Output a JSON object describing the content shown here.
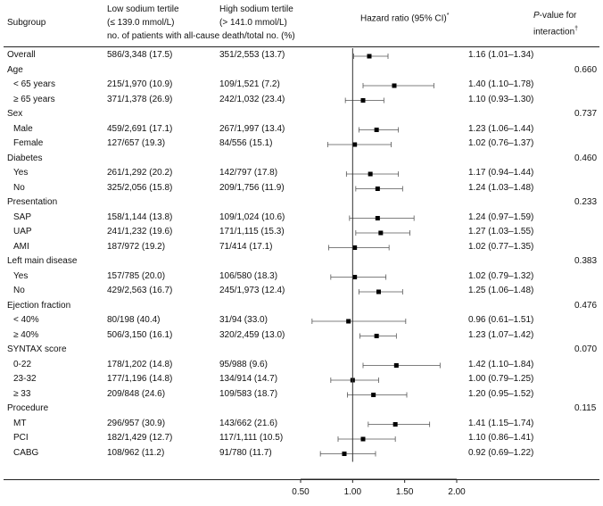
{
  "header": {
    "subgroup": "Subgroup",
    "low_line1": "Low sodium tertile",
    "low_line2": "(≤ 139.0 mmol/L)",
    "high_line1": "High sodium tertile",
    "high_line2": "(> 141.0 mmol/L)",
    "counts_caption": "no. of patients with all-cause death/total no. (%)",
    "hr_title": "Hazard ratio (95% CI)",
    "hr_title_mark": "*",
    "p_line1_italic": "P",
    "p_line1_rest": "-value for",
    "p_line2": "interaction",
    "p_line2_mark": "†"
  },
  "chart_data": {
    "type": "forest",
    "xlim": [
      0.5,
      2.0
    ],
    "xticks": [
      "0.50",
      "1.00",
      "1.50",
      "2.00"
    ],
    "reference_line": 1.0,
    "rows": [
      {
        "label": "Overall",
        "kind": "overall",
        "low": "586/3,348 (17.5)",
        "high": "351/2,553 (13.7)",
        "hr": 1.16,
        "lo": 1.01,
        "hi": 1.34,
        "hr_text": "1.16 (1.01–1.34)",
        "p": ""
      },
      {
        "label": "Age",
        "kind": "group",
        "p": "0.660"
      },
      {
        "label": "< 65 years",
        "kind": "sub",
        "low": "215/1,970 (10.9)",
        "high": "109/1,521 (7.2)",
        "hr": 1.4,
        "lo": 1.1,
        "hi": 1.78,
        "hr_text": "1.40 (1.10–1.78)"
      },
      {
        "label": "≥ 65 years",
        "kind": "sub",
        "low": "371/1,378 (26.9)",
        "high": "242/1,032 (23.4)",
        "hr": 1.1,
        "lo": 0.93,
        "hi": 1.3,
        "hr_text": "1.10 (0.93–1.30)"
      },
      {
        "label": "Sex",
        "kind": "group",
        "p": "0.737"
      },
      {
        "label": "Male",
        "kind": "sub",
        "low": "459/2,691 (17.1)",
        "high": "267/1,997 (13.4)",
        "hr": 1.23,
        "lo": 1.06,
        "hi": 1.44,
        "hr_text": "1.23 (1.06–1.44)"
      },
      {
        "label": "Female",
        "kind": "sub",
        "low": "127/657 (19.3)",
        "high": "84/556 (15.1)",
        "hr": 1.02,
        "lo": 0.76,
        "hi": 1.37,
        "hr_text": "1.02 (0.76–1.37)"
      },
      {
        "label": "Diabetes",
        "kind": "group",
        "p": "0.460"
      },
      {
        "label": "Yes",
        "kind": "sub",
        "low": "261/1,292 (20.2)",
        "high": "142/797 (17.8)",
        "hr": 1.17,
        "lo": 0.94,
        "hi": 1.44,
        "hr_text": "1.17 (0.94–1.44)"
      },
      {
        "label": "No",
        "kind": "sub",
        "low": "325/2,056 (15.8)",
        "high": "209/1,756 (11.9)",
        "hr": 1.24,
        "lo": 1.03,
        "hi": 1.48,
        "hr_text": "1.24 (1.03–1.48)"
      },
      {
        "label": "Presentation",
        "kind": "group",
        "p": "0.233"
      },
      {
        "label": "SAP",
        "kind": "sub",
        "low": "158/1,144 (13.8)",
        "high": "109/1,024 (10.6)",
        "hr": 1.24,
        "lo": 0.97,
        "hi": 1.59,
        "hr_text": "1.24 (0.97–1.59)"
      },
      {
        "label": "UAP",
        "kind": "sub",
        "low": "241/1,232 (19.6)",
        "high": "171/1,115 (15.3)",
        "hr": 1.27,
        "lo": 1.03,
        "hi": 1.55,
        "hr_text": "1.27 (1.03–1.55)"
      },
      {
        "label": "AMI",
        "kind": "sub",
        "low": "187/972 (19.2)",
        "high": "71/414 (17.1)",
        "hr": 1.02,
        "lo": 0.77,
        "hi": 1.35,
        "hr_text": "1.02 (0.77–1.35)"
      },
      {
        "label": "Left main disease",
        "kind": "group",
        "p": "0.383"
      },
      {
        "label": "Yes",
        "kind": "sub",
        "low": "157/785 (20.0)",
        "high": "106/580 (18.3)",
        "hr": 1.02,
        "lo": 0.79,
        "hi": 1.32,
        "hr_text": "1.02 (0.79–1.32)"
      },
      {
        "label": "No",
        "kind": "sub",
        "low": "429/2,563 (16.7)",
        "high": "245/1,973 (12.4)",
        "hr": 1.25,
        "lo": 1.06,
        "hi": 1.48,
        "hr_text": "1.25 (1.06–1.48)"
      },
      {
        "label": "Ejection fraction",
        "kind": "group",
        "p": "0.476"
      },
      {
        "label": "< 40%",
        "kind": "sub",
        "low": "80/198 (40.4)",
        "high": "31/94 (33.0)",
        "hr": 0.96,
        "lo": 0.61,
        "hi": 1.51,
        "hr_text": "0.96 (0.61–1.51)"
      },
      {
        "label": "≥ 40%",
        "kind": "sub",
        "low": "506/3,150 (16.1)",
        "high": "320/2,459 (13.0)",
        "hr": 1.23,
        "lo": 1.07,
        "hi": 1.42,
        "hr_text": "1.23 (1.07–1.42)"
      },
      {
        "label": "SYNTAX score",
        "kind": "group",
        "p": "0.070"
      },
      {
        "label": "0-22",
        "kind": "sub",
        "low": "178/1,202 (14.8)",
        "high": "95/988 (9.6)",
        "hr": 1.42,
        "lo": 1.1,
        "hi": 1.84,
        "hr_text": "1.42 (1.10–1.84)"
      },
      {
        "label": "23-32",
        "kind": "sub",
        "low": "177/1,196 (14.8)",
        "high": "134/914 (14.7)",
        "hr": 1.0,
        "lo": 0.79,
        "hi": 1.25,
        "hr_text": "1.00 (0.79–1.25)"
      },
      {
        "label": "≥ 33",
        "kind": "sub",
        "low": "209/848 (24.6)",
        "high": "109/583 (18.7)",
        "hr": 1.2,
        "lo": 0.95,
        "hi": 1.52,
        "hr_text": "1.20 (0.95–1.52)"
      },
      {
        "label": "Procedure",
        "kind": "group",
        "p": "0.115"
      },
      {
        "label": "MT",
        "kind": "sub",
        "low": "296/957 (30.9)",
        "high": "143/662 (21.6)",
        "hr": 1.41,
        "lo": 1.15,
        "hi": 1.74,
        "hr_text": "1.41 (1.15–1.74)"
      },
      {
        "label": "PCI",
        "kind": "sub",
        "low": "182/1,429 (12.7)",
        "high": "117/1,111 (10.5)",
        "hr": 1.1,
        "lo": 0.86,
        "hi": 1.41,
        "hr_text": "1.10 (0.86–1.41)"
      },
      {
        "label": "CABG",
        "kind": "sub",
        "low": "108/962 (11.2)",
        "high": "91/780 (11.7)",
        "hr": 0.92,
        "lo": 0.69,
        "hi": 1.22,
        "hr_text": "0.92 (0.69–1.22)"
      }
    ]
  }
}
